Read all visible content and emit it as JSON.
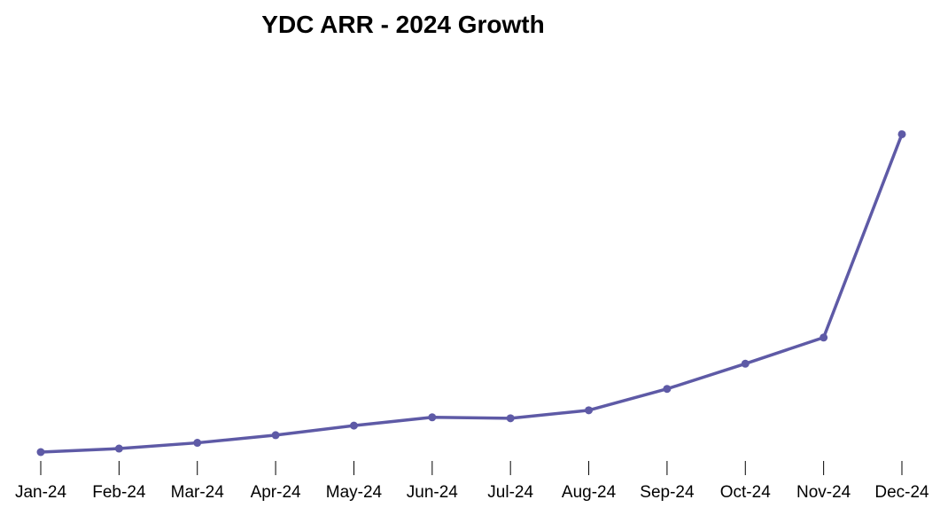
{
  "chart_data": {
    "type": "line",
    "title": "YDC ARR - 2024 Growth",
    "xlabel": "",
    "ylabel": "",
    "categories": [
      "Jan-24",
      "Feb-24",
      "Mar-24",
      "Apr-24",
      "May-24",
      "Jun-24",
      "Jul-24",
      "Aug-24",
      "Sep-24",
      "Oct-24",
      "Nov-24",
      "Dec-24"
    ],
    "series": [
      {
        "values": [
          0,
          1.1,
          2.9,
          5.3,
          8.3,
          10.9,
          10.6,
          13.1,
          19.8,
          27.7,
          35.9,
          99.6
        ]
      }
    ],
    "ylim": [
      0,
      100
    ],
    "y_axis_visible": false,
    "grid": false,
    "legend": "none",
    "line_color": "#5e5aa6"
  }
}
